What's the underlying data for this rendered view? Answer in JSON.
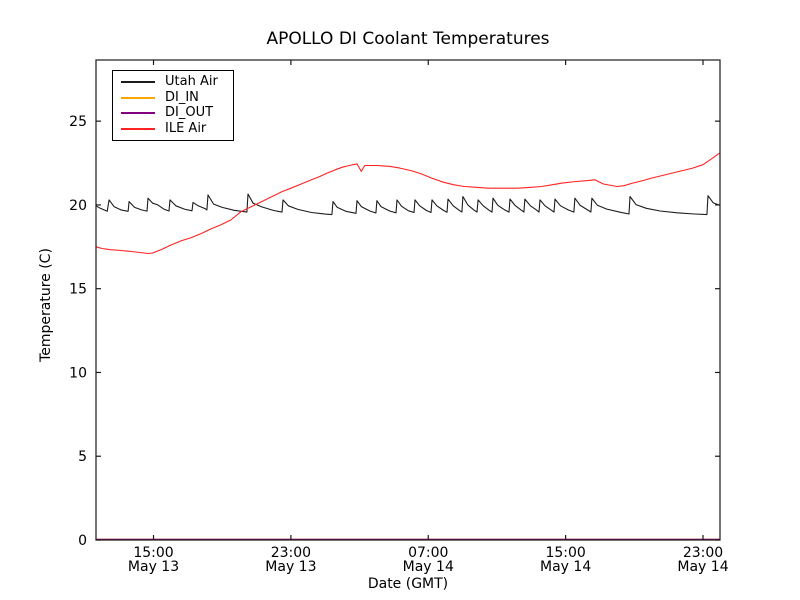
{
  "chart_data": {
    "type": "line",
    "title": "APOLLO DI Coolant Temperatures",
    "xlabel": "Date (GMT)",
    "ylabel": "Temperature (C)",
    "x_unit": "hours since May 13 00:00 GMT",
    "xlim_hours": [
      11.65,
      47.99
    ],
    "ylim": [
      0,
      28.65
    ],
    "y_ticks": [
      0,
      5,
      10,
      15,
      20,
      25
    ],
    "x_ticks": [
      {
        "t": 15,
        "time": "15:00",
        "date": "May 13"
      },
      {
        "t": 23,
        "time": "23:00",
        "date": "May 13"
      },
      {
        "t": 31,
        "time": "07:00",
        "date": "May 14"
      },
      {
        "t": 39,
        "time": "15:00",
        "date": "May 14"
      },
      {
        "t": 47,
        "time": "23:00",
        "date": "May 14"
      }
    ],
    "grid": false,
    "legend_position": "upper left",
    "series": [
      {
        "name": "Utah Air",
        "color": "#1c1c1c",
        "points": [
          [
            11.65,
            19.95
          ],
          [
            11.9,
            19.8
          ],
          [
            12.3,
            19.62
          ],
          [
            12.41,
            20.3
          ],
          [
            12.7,
            19.9
          ],
          [
            13.1,
            19.7
          ],
          [
            13.52,
            19.62
          ],
          [
            13.58,
            20.2
          ],
          [
            13.9,
            19.85
          ],
          [
            14.3,
            19.7
          ],
          [
            14.62,
            19.63
          ],
          [
            14.68,
            20.4
          ],
          [
            14.95,
            20.1
          ],
          [
            15.25,
            20.0
          ],
          [
            15.6,
            19.75
          ],
          [
            15.9,
            19.64
          ],
          [
            15.96,
            20.3
          ],
          [
            16.3,
            19.95
          ],
          [
            16.8,
            19.75
          ],
          [
            17.24,
            19.65
          ],
          [
            17.3,
            20.15
          ],
          [
            17.6,
            19.95
          ],
          [
            18.0,
            19.78
          ],
          [
            18.11,
            19.7
          ],
          [
            18.17,
            20.6
          ],
          [
            18.5,
            20.05
          ],
          [
            19.0,
            19.85
          ],
          [
            19.7,
            19.68
          ],
          [
            20.44,
            19.57
          ],
          [
            20.5,
            20.65
          ],
          [
            20.8,
            20.1
          ],
          [
            21.3,
            19.88
          ],
          [
            22.0,
            19.67
          ],
          [
            22.48,
            19.57
          ],
          [
            22.54,
            20.3
          ],
          [
            22.85,
            19.95
          ],
          [
            23.4,
            19.73
          ],
          [
            24.2,
            19.55
          ],
          [
            25.0,
            19.45
          ],
          [
            25.39,
            19.42
          ],
          [
            25.45,
            20.2
          ],
          [
            25.7,
            19.85
          ],
          [
            26.2,
            19.62
          ],
          [
            26.79,
            19.5
          ],
          [
            26.85,
            20.25
          ],
          [
            27.1,
            19.9
          ],
          [
            27.6,
            19.64
          ],
          [
            27.95,
            19.52
          ],
          [
            28.01,
            20.25
          ],
          [
            28.25,
            19.9
          ],
          [
            28.75,
            19.64
          ],
          [
            29.12,
            19.53
          ],
          [
            29.18,
            20.3
          ],
          [
            29.45,
            19.92
          ],
          [
            29.85,
            19.65
          ],
          [
            30.17,
            19.55
          ],
          [
            30.23,
            20.3
          ],
          [
            30.5,
            19.95
          ],
          [
            30.9,
            19.67
          ],
          [
            31.16,
            19.55
          ],
          [
            31.22,
            20.3
          ],
          [
            31.5,
            19.95
          ],
          [
            31.9,
            19.67
          ],
          [
            32.09,
            19.56
          ],
          [
            32.15,
            20.35
          ],
          [
            32.45,
            19.95
          ],
          [
            32.8,
            19.68
          ],
          [
            32.96,
            19.57
          ],
          [
            33.02,
            20.5
          ],
          [
            33.3,
            20.0
          ],
          [
            33.65,
            19.7
          ],
          [
            33.84,
            19.57
          ],
          [
            33.9,
            20.3
          ],
          [
            34.2,
            19.95
          ],
          [
            34.55,
            19.68
          ],
          [
            34.71,
            19.57
          ],
          [
            34.77,
            20.4
          ],
          [
            35.05,
            19.98
          ],
          [
            35.45,
            19.7
          ],
          [
            35.7,
            19.57
          ],
          [
            35.76,
            20.35
          ],
          [
            36.05,
            19.97
          ],
          [
            36.4,
            19.7
          ],
          [
            36.57,
            19.57
          ],
          [
            36.63,
            20.35
          ],
          [
            36.95,
            19.95
          ],
          [
            37.3,
            19.7
          ],
          [
            37.45,
            19.57
          ],
          [
            37.51,
            20.3
          ],
          [
            37.8,
            19.95
          ],
          [
            38.15,
            19.7
          ],
          [
            38.32,
            19.57
          ],
          [
            38.38,
            20.35
          ],
          [
            38.7,
            19.95
          ],
          [
            39.15,
            19.7
          ],
          [
            39.48,
            19.57
          ],
          [
            39.54,
            20.4
          ],
          [
            39.85,
            19.97
          ],
          [
            40.25,
            19.72
          ],
          [
            40.47,
            19.58
          ],
          [
            40.53,
            20.4
          ],
          [
            40.85,
            19.98
          ],
          [
            41.4,
            19.75
          ],
          [
            42.2,
            19.56
          ],
          [
            42.69,
            19.46
          ],
          [
            42.75,
            20.5
          ],
          [
            43.1,
            20.02
          ],
          [
            43.7,
            19.8
          ],
          [
            44.5,
            19.64
          ],
          [
            45.5,
            19.53
          ],
          [
            46.5,
            19.46
          ],
          [
            47.23,
            19.42
          ],
          [
            47.29,
            20.55
          ],
          [
            47.6,
            20.12
          ],
          [
            47.99,
            19.97
          ]
        ]
      },
      {
        "name": "DI_IN",
        "color": "#ffa500",
        "points": [
          [
            11.65,
            0
          ],
          [
            47.99,
            0
          ]
        ]
      },
      {
        "name": "DI_OUT",
        "color": "#800080",
        "points": [
          [
            11.65,
            0
          ],
          [
            47.99,
            0
          ]
        ]
      },
      {
        "name": "ILE Air",
        "color": "#ff2222",
        "points": [
          [
            11.65,
            17.5
          ],
          [
            12.0,
            17.4
          ],
          [
            12.5,
            17.33
          ],
          [
            13.1,
            17.28
          ],
          [
            13.7,
            17.22
          ],
          [
            14.2,
            17.16
          ],
          [
            14.7,
            17.1
          ],
          [
            14.95,
            17.13
          ],
          [
            15.5,
            17.35
          ],
          [
            16.0,
            17.6
          ],
          [
            16.6,
            17.85
          ],
          [
            17.2,
            18.05
          ],
          [
            17.8,
            18.3
          ],
          [
            18.3,
            18.55
          ],
          [
            18.9,
            18.8
          ],
          [
            19.5,
            19.1
          ],
          [
            20.1,
            19.6
          ],
          [
            20.7,
            19.9
          ],
          [
            21.3,
            20.2
          ],
          [
            22.0,
            20.55
          ],
          [
            22.5,
            20.8
          ],
          [
            23.0,
            21.0
          ],
          [
            23.6,
            21.25
          ],
          [
            24.2,
            21.5
          ],
          [
            24.7,
            21.7
          ],
          [
            25.1,
            21.9
          ],
          [
            25.6,
            22.1
          ],
          [
            26.0,
            22.25
          ],
          [
            26.4,
            22.35
          ],
          [
            26.85,
            22.45
          ],
          [
            27.1,
            22.0
          ],
          [
            27.3,
            22.35
          ],
          [
            28.0,
            22.35
          ],
          [
            28.8,
            22.3
          ],
          [
            29.35,
            22.2
          ],
          [
            30.0,
            22.05
          ],
          [
            30.6,
            21.85
          ],
          [
            31.2,
            21.6
          ],
          [
            31.9,
            21.35
          ],
          [
            32.5,
            21.2
          ],
          [
            33.1,
            21.1
          ],
          [
            33.8,
            21.05
          ],
          [
            34.5,
            21.0
          ],
          [
            35.3,
            21.0
          ],
          [
            36.2,
            21.0
          ],
          [
            37.0,
            21.05
          ],
          [
            37.6,
            21.1
          ],
          [
            38.2,
            21.2
          ],
          [
            38.8,
            21.3
          ],
          [
            39.6,
            21.4
          ],
          [
            40.3,
            21.45
          ],
          [
            40.7,
            21.5
          ],
          [
            41.2,
            21.25
          ],
          [
            42.0,
            21.1
          ],
          [
            42.4,
            21.15
          ],
          [
            42.9,
            21.3
          ],
          [
            43.5,
            21.45
          ],
          [
            44.0,
            21.6
          ],
          [
            44.6,
            21.75
          ],
          [
            45.2,
            21.9
          ],
          [
            45.8,
            22.05
          ],
          [
            46.4,
            22.2
          ],
          [
            47.0,
            22.4
          ],
          [
            47.5,
            22.75
          ],
          [
            47.9,
            23.05
          ],
          [
            47.99,
            23.1
          ]
        ]
      }
    ]
  }
}
